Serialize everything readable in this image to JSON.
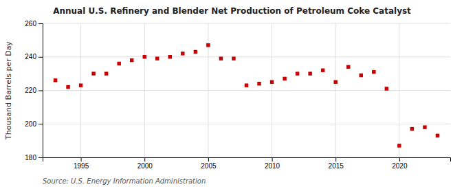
{
  "chart_data": {
    "type": "scatter",
    "title": "Annual U.S. Refinery and Blender Net Production of Petroleum Coke Catalyst",
    "ylabel": "Thousand Barrels per Day",
    "annotations": [
      "Source: U.S. Energy Information Administration"
    ],
    "x": [
      1993,
      1994,
      1995,
      1996,
      1997,
      1998,
      1999,
      2000,
      2001,
      2002,
      2003,
      2004,
      2005,
      2006,
      2007,
      2008,
      2009,
      2010,
      2011,
      2012,
      2013,
      2014,
      2015,
      2016,
      2017,
      2018,
      2019,
      2020,
      2021,
      2022,
      2023
    ],
    "values": [
      226,
      222,
      223,
      230,
      230,
      236,
      238,
      240,
      239,
      240,
      242,
      243,
      247,
      239,
      239,
      223,
      224,
      225,
      227,
      230,
      230,
      232,
      225,
      234,
      229,
      231,
      221,
      187,
      197,
      198,
      193
    ],
    "color": "#cc0000",
    "marker": "square",
    "xlim": [
      1992,
      2024
    ],
    "ylim": [
      180,
      260
    ],
    "xticks": [
      1995,
      2000,
      2005,
      2010,
      2015,
      2020
    ],
    "yticks": [
      180,
      200,
      220,
      240,
      260
    ],
    "grid": true
  }
}
